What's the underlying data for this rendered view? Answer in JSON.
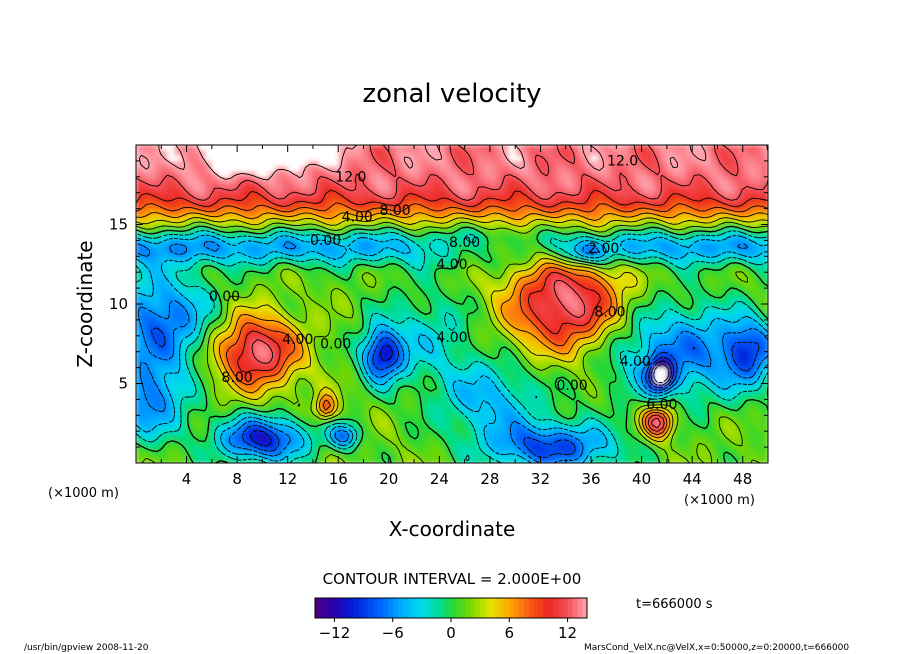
{
  "chart_data": {
    "type": "heatmap",
    "title": "zonal velocity",
    "xlabel": "X-coordinate",
    "ylabel": "Z-coordinate",
    "x_unit": "(×1000 m)",
    "z_unit": "(×1000 m)",
    "xlim": [
      0,
      50
    ],
    "ylim": [
      0,
      20
    ],
    "x_ticks": [
      4,
      8,
      12,
      16,
      20,
      24,
      28,
      32,
      36,
      40,
      44,
      48
    ],
    "y_ticks": [
      5,
      10,
      15
    ],
    "contour_labels": [
      {
        "text": "12.0",
        "x": 17,
        "y": 17.7
      },
      {
        "text": "12.0",
        "x": 38.5,
        "y": 18.7
      },
      {
        "text": "8.00",
        "x": 20.5,
        "y": 15.6
      },
      {
        "text": "4.00",
        "x": 17.5,
        "y": 15.2
      },
      {
        "text": "0.00",
        "x": 15,
        "y": 13.7
      },
      {
        "text": "8.00",
        "x": 26,
        "y": 13.6
      },
      {
        "text": "4.00",
        "x": 25,
        "y": 12.2
      },
      {
        "text": "2.00",
        "x": 37,
        "y": 13.2
      },
      {
        "text": "0.00",
        "x": 7,
        "y": 10.2
      },
      {
        "text": "8.00",
        "x": 37.5,
        "y": 9.2
      },
      {
        "text": "4.00",
        "x": 12.8,
        "y": 7.5
      },
      {
        "text": "0.00",
        "x": 15.8,
        "y": 7.2
      },
      {
        "text": "4.00",
        "x": 25,
        "y": 7.6
      },
      {
        "text": "8.00",
        "x": 8,
        "y": 5.1
      },
      {
        "text": "4.00",
        "x": 39.5,
        "y": 6.1
      },
      {
        "text": "0.00",
        "x": 34.5,
        "y": 4.6
      },
      {
        "text": "6.00",
        "x": 41.6,
        "y": 3.4
      }
    ],
    "grid": false,
    "colorbar": {
      "min": -14,
      "max": 14,
      "interval": 2,
      "ticks": [
        -12,
        -6,
        0,
        6,
        12
      ]
    }
  },
  "contour_interval_text": "CONTOUR INTERVAL = 2.000E+00",
  "time_text": "t=666000 s",
  "footer_left": "/usr/bin/gpview  2008-11-20",
  "footer_right": "MarsCond_VelX.nc@VelX,x=0:50000,z=0:20000,t=666000"
}
